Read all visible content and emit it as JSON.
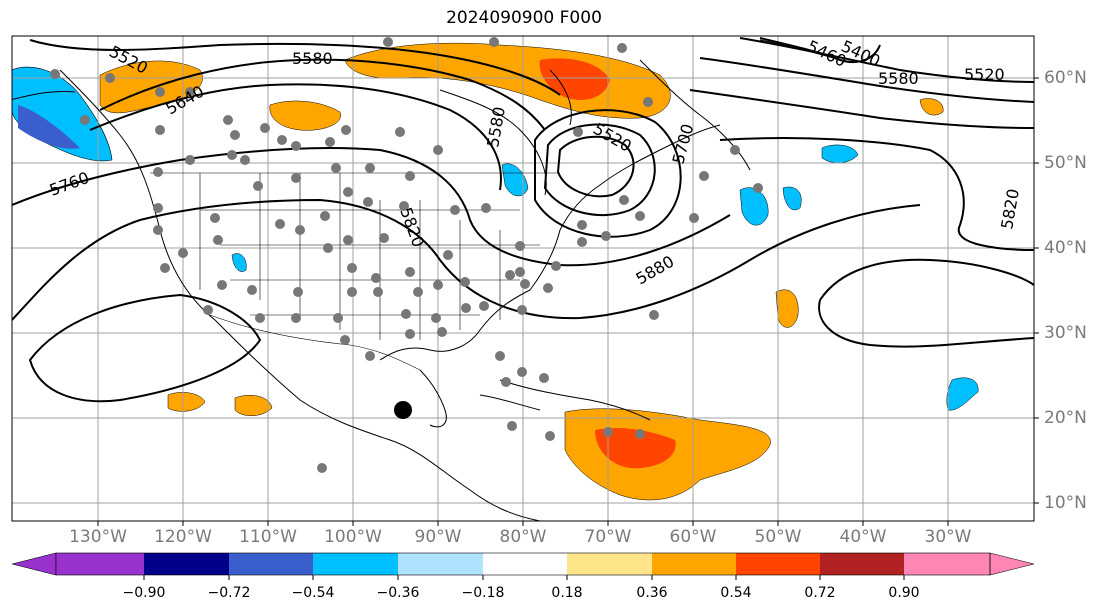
{
  "title": "2024090900 F000",
  "map": {
    "lon_labels": [
      "130°W",
      "120°W",
      "110°W",
      "100°W",
      "90°W",
      "80°W",
      "70°W",
      "60°W",
      "50°W",
      "40°W",
      "30°W"
    ],
    "lat_labels": [
      "60°N",
      "50°N",
      "40°N",
      "30°N",
      "20°N",
      "10°N"
    ],
    "contour_labels": [
      "5520",
      "5580",
      "5640",
      "5760",
      "5580",
      "5520",
      "5580",
      "5520",
      "5400",
      "5460",
      "5820",
      "5880",
      "5820",
      "5700"
    ],
    "marker": "storm-center-marker"
  },
  "colorbar": {
    "ticks": [
      "−0.90",
      "−0.72",
      "−0.54",
      "−0.36",
      "−0.18",
      "0.18",
      "0.36",
      "0.54",
      "0.72",
      "0.90"
    ],
    "colors": [
      "#9932cc",
      "#00008b",
      "#3a5fcd",
      "#00bfff",
      "#b0e2ff",
      "#ffffff",
      "#ffe58a",
      "#ffa500",
      "#ff4500",
      "#b22222",
      "#ff85b5"
    ]
  }
}
